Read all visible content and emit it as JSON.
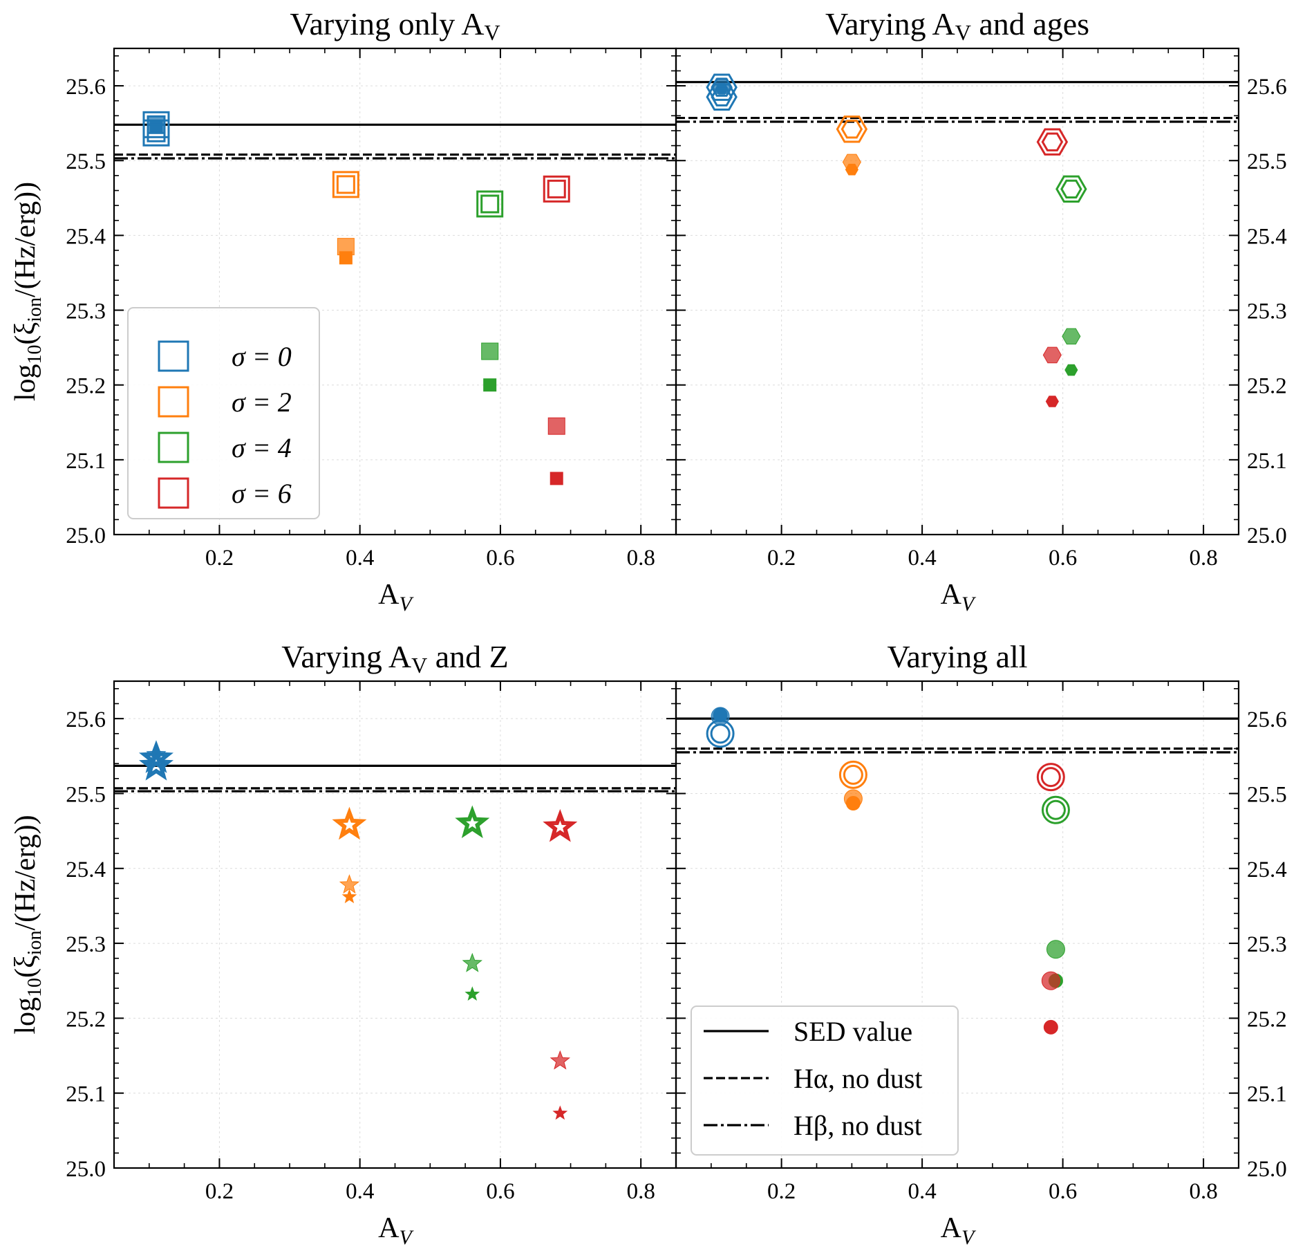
{
  "colors": {
    "sigma0": "#1f77b4",
    "sigma2": "#ff7f0e",
    "sigma4": "#2ca02c",
    "sigma6": "#d62728",
    "line": "#000000"
  },
  "chart_data": [
    {
      "type": "scatter",
      "panel": "top-left",
      "title": "Varying only A",
      "title_sub": "V",
      "title_rest": "",
      "marker": "square",
      "xlabel": "A",
      "xlabel_sub": "V",
      "ylabel": "log10(ξion/(Hz/erg))",
      "xlim": [
        0.05,
        0.85
      ],
      "ylim": [
        25.0,
        25.65
      ],
      "xticks": [
        "0.2",
        "0.4",
        "0.6",
        "0.8"
      ],
      "yticks": [
        "25.0",
        "25.1",
        "25.2",
        "25.3",
        "25.4",
        "25.5",
        "25.6"
      ],
      "yaxis_side": "left",
      "grid": true,
      "reference_lines": {
        "sed": 25.548,
        "halpha": 25.508,
        "hbeta": 25.503
      },
      "series": [
        {
          "name": "σ = 0",
          "color_key": "sigma0",
          "x": 0.11,
          "open": [
            25.548,
            25.537
          ],
          "medium": 25.548,
          "small": 25.545
        },
        {
          "name": "σ = 2",
          "color_key": "sigma2",
          "x": 0.38,
          "open": [
            25.468
          ],
          "medium": 25.385,
          "small": 25.37
        },
        {
          "name": "σ = 4",
          "color_key": "sigma4",
          "x": 0.585,
          "open": [
            25.442
          ],
          "medium": 25.245,
          "small": 25.2
        },
        {
          "name": "σ = 6",
          "color_key": "sigma6",
          "x": 0.68,
          "open": [
            25.462
          ],
          "medium": 25.145,
          "small": 25.075
        }
      ],
      "legend": {
        "position": "lower-left",
        "items": [
          {
            "label": "σ = 0",
            "color_key": "sigma0"
          },
          {
            "label": "σ = 2",
            "color_key": "sigma2"
          },
          {
            "label": "σ = 4",
            "color_key": "sigma4"
          },
          {
            "label": "σ = 6",
            "color_key": "sigma6"
          }
        ]
      }
    },
    {
      "type": "scatter",
      "panel": "top-right",
      "title": "Varying A",
      "title_sub": "V",
      "title_rest": " and ages",
      "marker": "hexagon",
      "xlabel": "A",
      "xlabel_sub": "V",
      "ylabel": "",
      "xlim": [
        0.05,
        0.85
      ],
      "ylim": [
        25.0,
        25.65
      ],
      "xticks": [
        "0.2",
        "0.4",
        "0.6",
        "0.8"
      ],
      "yticks": [
        "25.0",
        "25.1",
        "25.2",
        "25.3",
        "25.4",
        "25.5",
        "25.6"
      ],
      "yaxis_side": "right",
      "grid": true,
      "reference_lines": {
        "sed": 25.605,
        "halpha": 25.557,
        "hbeta": 25.552
      },
      "series": [
        {
          "name": "σ = 0",
          "color_key": "sigma0",
          "x": 0.115,
          "open": [
            25.598,
            25.585
          ],
          "medium": 25.6,
          "small": 25.596
        },
        {
          "name": "σ = 2",
          "color_key": "sigma2",
          "x": 0.3,
          "open": [
            25.542
          ],
          "medium": 25.498,
          "small": 25.488
        },
        {
          "name": "σ = 4",
          "color_key": "sigma4",
          "x": 0.612,
          "open": [
            25.462
          ],
          "medium": 25.265,
          "small": 25.22
        },
        {
          "name": "σ = 6",
          "color_key": "sigma6",
          "x": 0.585,
          "open": [
            25.525
          ],
          "medium": 25.24,
          "small": 25.178
        }
      ]
    },
    {
      "type": "scatter",
      "panel": "bottom-left",
      "title": "Varying A",
      "title_sub": "V",
      "title_rest": " and Z",
      "marker": "star",
      "xlabel": "A",
      "xlabel_sub": "V",
      "ylabel": "log10(ξion/(Hz/erg))",
      "xlim": [
        0.05,
        0.85
      ],
      "ylim": [
        25.0,
        25.65
      ],
      "xticks": [
        "0.2",
        "0.4",
        "0.6",
        "0.8"
      ],
      "yticks": [
        "25.0",
        "25.1",
        "25.2",
        "25.3",
        "25.4",
        "25.5",
        "25.6"
      ],
      "yaxis_side": "left",
      "grid": true,
      "reference_lines": {
        "sed": 25.537,
        "halpha": 25.507,
        "hbeta": 25.503
      },
      "series": [
        {
          "name": "σ = 0",
          "color_key": "sigma0",
          "x": 0.11,
          "open": [
            25.547,
            25.537
          ],
          "medium": 25.552,
          "small": 25.55
        },
        {
          "name": "σ = 2",
          "color_key": "sigma2",
          "x": 0.385,
          "open": [
            25.458
          ],
          "medium": 25.378,
          "small": 25.362
        },
        {
          "name": "σ = 4",
          "color_key": "sigma4",
          "x": 0.56,
          "open": [
            25.46
          ],
          "medium": 25.273,
          "small": 25.232
        },
        {
          "name": "σ = 6",
          "color_key": "sigma6",
          "x": 0.685,
          "open": [
            25.455
          ],
          "medium": 25.143,
          "small": 25.073
        }
      ]
    },
    {
      "type": "scatter",
      "panel": "bottom-right",
      "title": "Varying all",
      "title_sub": "",
      "title_rest": "",
      "marker": "circle",
      "xlabel": "A",
      "xlabel_sub": "V",
      "ylabel": "",
      "xlim": [
        0.05,
        0.85
      ],
      "ylim": [
        25.0,
        25.65
      ],
      "xticks": [
        "0.2",
        "0.4",
        "0.6",
        "0.8"
      ],
      "yticks": [
        "25.0",
        "25.1",
        "25.2",
        "25.3",
        "25.4",
        "25.5",
        "25.6"
      ],
      "yaxis_side": "right",
      "grid": true,
      "reference_lines": {
        "sed": 25.6,
        "halpha": 25.56,
        "hbeta": 25.555
      },
      "series": [
        {
          "name": "σ = 0",
          "color_key": "sigma0",
          "x": 0.113,
          "open": [
            25.58
          ],
          "medium": 25.603,
          "small": 25.605
        },
        {
          "name": "σ = 2",
          "color_key": "sigma2",
          "x": 0.302,
          "open": [
            25.525
          ],
          "medium": 25.493,
          "small": 25.487
        },
        {
          "name": "σ = 4",
          "color_key": "sigma4",
          "x": 0.59,
          "open": [
            25.478
          ],
          "medium": 25.292,
          "small": 25.25
        },
        {
          "name": "σ = 6",
          "color_key": "sigma6",
          "x": 0.583,
          "open": [
            25.522
          ],
          "medium": 25.25,
          "small": 25.188
        }
      ],
      "legend": {
        "position": "lower-left",
        "items": [
          {
            "label": "SED value",
            "style": "solid"
          },
          {
            "label": "Hα, no dust",
            "style": "dashed"
          },
          {
            "label": "Hβ, no dust",
            "style": "dashdot"
          }
        ]
      }
    }
  ]
}
